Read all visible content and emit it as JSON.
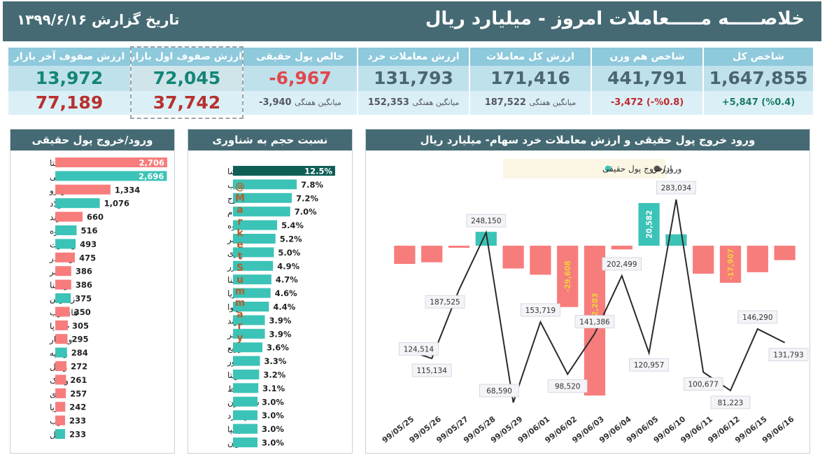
{
  "header": {
    "title": "خلاصـــــه مـــــعاملات امروز - میلیارد ریال",
    "date": "تاریخ گزارش ۱۳۹۹/۶/۱۶"
  },
  "kpis": [
    {
      "label": "شاخص کل",
      "value": "1,647,855",
      "change": "+5,847 (%0.4)",
      "change_color": "#1b7a62"
    },
    {
      "label": "شاخص هم وزن",
      "value": "441,791",
      "change": "-3,472 (-%0.8)",
      "change_color": "#c0282d"
    },
    {
      "label": "ارزش کل معاملات",
      "value": "171,416",
      "avg_label": "میانگین هفتگی",
      "avg_value": "187,522"
    },
    {
      "label": "ارزش معاملات خرد",
      "value": "131,793",
      "avg_label": "میانگین هفتگی",
      "avg_value": "152,353"
    },
    {
      "label": "خالص پول حقیقی",
      "value": "-6,967",
      "avg_label": "میانگین هفتگی",
      "avg_value": "-3,940"
    },
    {
      "label": "ارزش صفوف اول بازار",
      "value": "72,045",
      "value2": "37,742"
    },
    {
      "label": "ارزش صفوف آخر بازار",
      "value": "13,972",
      "value2": "77,189"
    }
  ],
  "colors": {
    "header": "#456a74",
    "positive": "#3cc3b7",
    "negative": "#f77d7d",
    "dark_teal": "#0e5e56",
    "line": "#2b2b2b"
  },
  "flow_panel": {
    "title": "ورود/خروج پول حقیقی",
    "items": [
      {
        "name": "شستا",
        "value": 2706,
        "label": "2,706",
        "positive": false
      },
      {
        "name": "فملی",
        "value": 2696,
        "label": "2,696",
        "positive": true
      },
      {
        "name": "خودرو",
        "value": 1334,
        "label": "1,334",
        "positive": false
      },
      {
        "name": "فولاد",
        "value": 1076,
        "label": "1,076",
        "positive": true
      },
      {
        "name": "تماوند",
        "value": 660,
        "label": "660",
        "positive": false
      },
      {
        "name": "کاوه",
        "value": 516,
        "label": "516",
        "positive": true
      },
      {
        "name": "وتجارت",
        "value": 493,
        "label": "493",
        "positive": true
      },
      {
        "name": "وبصادر",
        "value": 475,
        "label": "475",
        "positive": false
      },
      {
        "name": "اخابر",
        "value": 386,
        "label": "386",
        "positive": false
      },
      {
        "name": "وسینا",
        "value": 386,
        "label": "386",
        "positive": false
      },
      {
        "name": "زاگرس",
        "value": 375,
        "label": "375",
        "positive": true
      },
      {
        "name": "های وب",
        "value": 350,
        "label": "350",
        "positive": false
      },
      {
        "name": "خساپا",
        "value": 305,
        "label": "305",
        "positive": false
      },
      {
        "name": "وپاسار",
        "value": 295,
        "label": "295",
        "positive": false
      },
      {
        "name": "وسپه",
        "value": 284,
        "label": "284",
        "positive": true
      },
      {
        "name": "وملل",
        "value": 272,
        "label": "272",
        "positive": false
      },
      {
        "name": "وبانک",
        "value": 261,
        "label": "261",
        "positive": false
      },
      {
        "name": "دی",
        "value": 257,
        "label": "257",
        "positive": false
      },
      {
        "name": "آریا",
        "value": 242,
        "label": "242",
        "positive": false
      },
      {
        "name": "ذوب",
        "value": 233,
        "label": "233",
        "positive": false
      },
      {
        "name": "کگل",
        "value": 233,
        "label": "233",
        "positive": true
      }
    ]
  },
  "float_panel": {
    "title": "نسبت حجم به شناوری",
    "watermark": "@MarketSummary",
    "items": [
      {
        "name": "تکشا",
        "value": 12.5,
        "label": "12.5%"
      },
      {
        "name": "بکاب",
        "value": 7.8,
        "label": "7.8%"
      },
      {
        "name": "بکیموج",
        "value": 7.2,
        "label": "7.2%"
      },
      {
        "name": "غدام",
        "value": 7.0,
        "label": "7.0%"
      },
      {
        "name": "کاوه",
        "value": 5.4,
        "label": "5.4%"
      },
      {
        "name": "بالبر",
        "value": 5.2,
        "label": "5.2%"
      },
      {
        "name": "کرازی",
        "value": 5.0,
        "label": "5.0%"
      },
      {
        "name": "غزر",
        "value": 4.9,
        "label": "4.9%"
      },
      {
        "name": "سینا",
        "value": 4.7,
        "label": "4.7%"
      },
      {
        "name": "آریا",
        "value": 4.6,
        "label": "4.6%"
      },
      {
        "name": "وآوا",
        "value": 4.4,
        "label": "4.4%"
      },
      {
        "name": "دماوند",
        "value": 3.9,
        "label": "3.9%"
      },
      {
        "name": "مفاخر",
        "value": 3.9,
        "label": "3.9%"
      },
      {
        "name": "دتوزیع",
        "value": 3.6,
        "label": "3.6%"
      },
      {
        "name": "بخاور",
        "value": 3.3,
        "label": "3.3%"
      },
      {
        "name": "غویتا",
        "value": 3.2,
        "label": "3.2%"
      },
      {
        "name": "کحافظ",
        "value": 3.1,
        "label": "3.1%"
      },
      {
        "name": "شکلامرن",
        "value": 3.0,
        "label": "3.0%"
      },
      {
        "name": "زملارد",
        "value": 3.0,
        "label": "3.0%"
      },
      {
        "name": "چکپا",
        "value": 3.0,
        "label": "3.0%"
      },
      {
        "name": "فسازان",
        "value": 3.0,
        "label": "3.0%"
      }
    ]
  },
  "chart_data": {
    "type": "bar",
    "title": "ورود خروج پول حقیقی و ارزش معاملات خرد سهام- میلیارد ریال",
    "legend": [
      "ارزش",
      "ورود/خروج پول حقیقی"
    ],
    "legend_placement": "top-center",
    "categories": [
      "99/05/25",
      "99/05/26",
      "99/05/27",
      "99/05/28",
      "99/05/29",
      "99/06/01",
      "99/06/02",
      "99/06/03",
      "99/06/04",
      "99/06/05",
      "99/06/10",
      "99/06/11",
      "99/06/12",
      "99/06/15",
      "99/06/16"
    ],
    "series": [
      {
        "name": "ورود/خروج پول حقیقی",
        "type": "bar",
        "values": [
          -8800,
          -8000,
          -1000,
          6700,
          -11000,
          -14000,
          -29608,
          -72283,
          -1800,
          20582,
          5500,
          -13500,
          -17907,
          -12800,
          -6967
        ],
        "labels": [
          "",
          "",
          "",
          "",
          "",
          "",
          "-29,608",
          "-72,283",
          "",
          "20,582",
          "",
          "",
          "-17,907",
          "",
          ""
        ]
      },
      {
        "name": "ارزش",
        "type": "line",
        "values": [
          124514,
          115134,
          187525,
          248150,
          68590,
          153719,
          98520,
          141386,
          202499,
          120957,
          283034,
          100677,
          81223,
          146290,
          131793
        ],
        "labels": [
          "124,514",
          "115,134",
          "187,525",
          "248,150",
          "68,590",
          "153,719",
          "98,520",
          "141,386",
          "202,499",
          "120,957",
          "283,034",
          "100,677",
          "81,223",
          "146,290",
          "131,793"
        ]
      }
    ]
  }
}
